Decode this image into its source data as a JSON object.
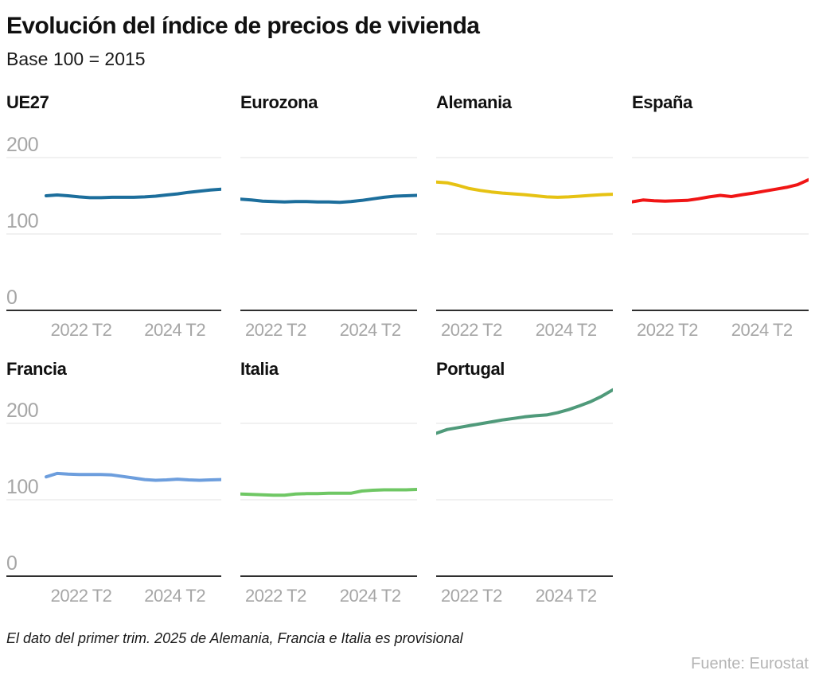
{
  "header": {
    "title": "Evolución del índice de precios de vivienda",
    "subtitle": "Base 100 = 2015"
  },
  "footer": {
    "note": "El dato del primer trim. 2025 de Alemania, Francia e Italia es provisional",
    "source": "Fuente: Eurostat"
  },
  "style": {
    "background": "#ffffff",
    "grid_color": "#e3e3e3",
    "axis_color": "#2f2f2f",
    "tick_label_color": "#a6a6a6",
    "title_color": "#111111",
    "note_color": "#1a1a1a",
    "source_color": "#b5b5b5"
  },
  "chart_data": [
    {
      "id": "ue27",
      "type": "line",
      "title": "UE27",
      "color": "#1c6e9c",
      "y_axis_labels": true,
      "ylim": [
        0,
        250
      ],
      "y_gridlines": [
        200,
        100
      ],
      "y_tick_labels": [
        "200",
        "100",
        "0"
      ],
      "x_tick_labels": [
        "2022 T2",
        "2024 T2"
      ],
      "x_tick_positions": [
        0.2,
        0.735
      ],
      "x_unit": "quarterly",
      "values": [
        150,
        151,
        150,
        148.5,
        147.5,
        147.5,
        148,
        148,
        148,
        148.5,
        149.5,
        151,
        152.5,
        154.5,
        156,
        157.5,
        158.5
      ]
    },
    {
      "id": "eurozona",
      "type": "line",
      "title": "Eurozona",
      "color": "#1c6e9c",
      "y_axis_labels": false,
      "ylim": [
        0,
        250
      ],
      "y_gridlines": [
        200,
        100
      ],
      "y_tick_labels": [
        "200",
        "100",
        "0"
      ],
      "x_tick_labels": [
        "2022 T2",
        "2024 T2"
      ],
      "x_tick_positions": [
        0.2,
        0.735
      ],
      "x_unit": "quarterly",
      "values": [
        145.5,
        144.5,
        143,
        142.5,
        142,
        142.5,
        142.5,
        142,
        142,
        141.5,
        142.5,
        144,
        146,
        148,
        149.5,
        150,
        150.5
      ]
    },
    {
      "id": "alemania",
      "type": "line",
      "title": "Alemania",
      "color": "#e6c213",
      "y_axis_labels": false,
      "ylim": [
        0,
        250
      ],
      "y_gridlines": [
        200,
        100
      ],
      "y_tick_labels": [
        "200",
        "100",
        "0"
      ],
      "x_tick_labels": [
        "2022 T2",
        "2024 T2"
      ],
      "x_tick_positions": [
        0.2,
        0.735
      ],
      "x_unit": "quarterly",
      "values": [
        168,
        167,
        163.5,
        159.5,
        157,
        155,
        153.5,
        152.5,
        151.5,
        150,
        148.5,
        148,
        148.5,
        149.5,
        150.5,
        151.5,
        152
      ]
    },
    {
      "id": "espana",
      "type": "line",
      "title": "España",
      "color": "#f01515",
      "y_axis_labels": false,
      "ylim": [
        0,
        250
      ],
      "y_gridlines": [
        200,
        100
      ],
      "y_tick_labels": [
        "200",
        "100",
        "0"
      ],
      "x_tick_labels": [
        "2022 T2",
        "2024 T2"
      ],
      "x_tick_positions": [
        0.2,
        0.735
      ],
      "x_unit": "quarterly",
      "values": [
        142,
        144.5,
        143.5,
        143,
        143.5,
        144,
        146,
        148.5,
        150.5,
        149,
        151.5,
        153.5,
        156,
        158.5,
        161,
        164.5,
        171
      ]
    },
    {
      "id": "francia",
      "type": "line",
      "title": "Francia",
      "color": "#6d9edd",
      "y_axis_labels": true,
      "ylim": [
        0,
        250
      ],
      "y_gridlines": [
        200,
        100
      ],
      "y_tick_labels": [
        "200",
        "100",
        "0"
      ],
      "x_tick_labels": [
        "2022 T2",
        "2024 T2"
      ],
      "x_tick_positions": [
        0.2,
        0.735
      ],
      "x_unit": "quarterly",
      "values": [
        130,
        134.5,
        133.5,
        133,
        133,
        133,
        132.5,
        130.5,
        128.5,
        126.5,
        125.5,
        126,
        127,
        126,
        125.5,
        126,
        126.5
      ]
    },
    {
      "id": "italia",
      "type": "line",
      "title": "Italia",
      "color": "#6fc764",
      "y_axis_labels": false,
      "ylim": [
        0,
        250
      ],
      "y_gridlines": [
        200,
        100
      ],
      "y_tick_labels": [
        "200",
        "100",
        "0"
      ],
      "x_tick_labels": [
        "2022 T2",
        "2024 T2"
      ],
      "x_tick_positions": [
        0.2,
        0.735
      ],
      "x_unit": "quarterly",
      "values": [
        107.5,
        107,
        106.5,
        106,
        106,
        107.5,
        108,
        108,
        108.5,
        108.5,
        108.5,
        111.5,
        112.5,
        113,
        113,
        113,
        113.5
      ]
    },
    {
      "id": "portugal",
      "type": "line",
      "title": "Portugal",
      "color": "#4f9a7a",
      "y_axis_labels": false,
      "ylim": [
        0,
        250
      ],
      "y_gridlines": [
        200,
        100
      ],
      "y_tick_labels": [
        "200",
        "100",
        "0"
      ],
      "x_tick_labels": [
        "2022 T2",
        "2024 T2"
      ],
      "x_tick_positions": [
        0.2,
        0.735
      ],
      "x_unit": "quarterly",
      "values": [
        187,
        192,
        194.5,
        197,
        199.5,
        202,
        204.5,
        206.5,
        208.5,
        210,
        211,
        214,
        218,
        223,
        228.5,
        235.5,
        244
      ]
    }
  ]
}
